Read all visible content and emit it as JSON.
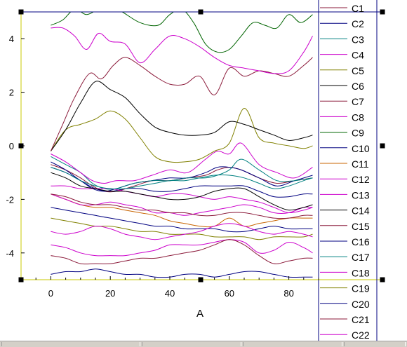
{
  "chart_data": {
    "type": "line",
    "xlabel": "A",
    "ylabel": "",
    "xlim": [
      -10,
      90
    ],
    "ylim": [
      -5,
      5
    ],
    "xticks": [
      0,
      20,
      40,
      60,
      80
    ],
    "yticks": [
      4,
      2,
      0,
      -2,
      -4
    ],
    "legend_position": "right",
    "series": [
      {
        "name": "C1",
        "color": "#8b1a3a",
        "x": [
          0,
          5,
          10,
          14,
          18,
          22,
          28,
          34,
          40,
          46,
          52,
          56,
          60,
          64,
          70,
          76,
          82,
          88
        ],
        "y": [
          -0.7,
          -0.9,
          -1.2,
          -1.5,
          -1.7,
          -1.7,
          -1.5,
          -1.3,
          -1.3,
          -1.2,
          -1.1,
          -0.9,
          -0.8,
          -0.9,
          -1.2,
          -1.4,
          -1.3,
          -1.2
        ]
      },
      {
        "name": "C2",
        "color": "#000080",
        "x": [
          0,
          5,
          10,
          14,
          18,
          22,
          28,
          34,
          40,
          46,
          52,
          56,
          60,
          64,
          70,
          76,
          82,
          88
        ],
        "y": [
          -0.8,
          -1.0,
          -1.3,
          -1.6,
          -1.7,
          -1.6,
          -1.4,
          -1.3,
          -1.2,
          -1.2,
          -1.0,
          -0.8,
          -0.8,
          -0.9,
          -1.2,
          -1.5,
          -1.3,
          -1.1
        ]
      },
      {
        "name": "C3",
        "color": "#008080",
        "x": [
          0,
          5,
          10,
          14,
          18,
          22,
          28,
          34,
          40,
          46,
          52,
          56,
          60,
          64,
          70,
          76,
          82,
          88
        ],
        "y": [
          -0.4,
          -0.7,
          -1.0,
          -1.4,
          -1.6,
          -1.6,
          -1.4,
          -1.3,
          -1.3,
          -1.2,
          -1.2,
          -1.1,
          -0.9,
          -0.5,
          -0.9,
          -1.3,
          -1.3,
          -1.2
        ]
      },
      {
        "name": "C4",
        "color": "#cc00cc",
        "x": [
          0,
          5,
          10,
          14,
          18,
          22,
          28,
          34,
          40,
          46,
          52,
          56,
          60,
          64,
          70,
          76,
          82,
          88
        ],
        "y": [
          -0.3,
          -0.6,
          -1.0,
          -1.3,
          -1.4,
          -1.3,
          -1.3,
          -1.1,
          -0.9,
          -1.0,
          -0.5,
          -0.2,
          -0.3,
          0.1,
          -0.7,
          -1.0,
          -1.2,
          -0.8
        ]
      },
      {
        "name": "C5",
        "color": "#808000",
        "x": [
          0,
          5,
          10,
          15,
          20,
          25,
          30,
          35,
          40,
          45,
          50,
          55,
          60,
          65,
          70,
          75,
          80,
          85,
          88
        ],
        "y": [
          -0.2,
          0.6,
          0.8,
          1.0,
          1.3,
          1.0,
          0.3,
          -0.4,
          -0.6,
          -0.6,
          -0.5,
          -0.2,
          0.1,
          1.4,
          0.3,
          0.1,
          0.0,
          -0.1,
          0.0
        ]
      },
      {
        "name": "C6",
        "color": "#000000",
        "x": [
          0,
          5,
          10,
          15,
          20,
          25,
          30,
          35,
          40,
          45,
          50,
          55,
          60,
          65,
          70,
          75,
          80,
          85,
          88
        ],
        "y": [
          -0.2,
          0.6,
          1.6,
          2.4,
          2.1,
          1.8,
          1.2,
          0.7,
          0.5,
          0.4,
          0.4,
          0.5,
          0.9,
          0.8,
          0.6,
          0.4,
          0.2,
          0.3,
          0.4
        ]
      },
      {
        "name": "C7",
        "color": "#8b1a3a",
        "x": [
          0,
          4,
          8,
          13,
          17,
          21,
          25,
          30,
          35,
          40,
          45,
          50,
          55,
          60,
          65,
          70,
          75,
          80,
          85,
          88
        ],
        "y": [
          -0.2,
          0.8,
          1.8,
          2.7,
          2.5,
          3.0,
          3.3,
          3.0,
          2.6,
          2.3,
          2.3,
          2.6,
          1.9,
          2.9,
          2.6,
          2.8,
          2.7,
          2.6,
          3.0,
          3.3
        ]
      },
      {
        "name": "C8",
        "color": "#cc00cc",
        "x": [
          0,
          4,
          8,
          12,
          16,
          20,
          25,
          30,
          35,
          40,
          45,
          50,
          55,
          60,
          65,
          70,
          75,
          80,
          85,
          88
        ],
        "y": [
          4.4,
          4.4,
          4.1,
          3.6,
          4.2,
          3.9,
          3.8,
          3.1,
          3.6,
          4.1,
          4.0,
          3.7,
          3.3,
          3.0,
          2.9,
          2.8,
          2.7,
          2.8,
          3.5,
          4.1
        ]
      },
      {
        "name": "C9",
        "color": "#006400",
        "x": [
          0,
          4,
          8,
          12,
          16,
          20,
          24,
          30,
          36,
          40,
          44,
          48,
          52,
          56,
          60,
          64,
          68,
          72,
          76,
          80,
          84,
          88
        ],
        "y": [
          4.5,
          4.7,
          5.1,
          4.9,
          5.1,
          5.2,
          5.0,
          4.6,
          4.5,
          4.9,
          5.1,
          4.6,
          3.8,
          3.5,
          3.6,
          4.1,
          4.6,
          4.5,
          4.4,
          4.9,
          4.6,
          4.9
        ]
      },
      {
        "name": "C10",
        "color": "#000080",
        "x": [
          0,
          5,
          10,
          15,
          20,
          25,
          30,
          35,
          40,
          45,
          50,
          55,
          60,
          65,
          70,
          75,
          80,
          85,
          88
        ],
        "y": [
          -0.6,
          -0.9,
          -1.3,
          -1.6,
          -1.7,
          -1.6,
          -1.6,
          -1.7,
          -1.7,
          -1.6,
          -1.5,
          -1.5,
          -1.5,
          -1.5,
          -1.7,
          -1.9,
          -1.9,
          -1.8,
          -1.8
        ]
      },
      {
        "name": "C11",
        "color": "#c86400",
        "x": [
          0,
          5,
          10,
          15,
          20,
          25,
          30,
          35,
          40,
          45,
          50,
          55,
          60,
          65,
          70,
          75,
          80,
          85,
          88
        ],
        "y": [
          -1.8,
          -2.0,
          -2.2,
          -2.3,
          -2.3,
          -2.4,
          -2.5,
          -2.6,
          -2.8,
          -2.9,
          -3.0,
          -3.0,
          -2.7,
          -3.0,
          -2.9,
          -2.8,
          -2.7,
          -2.7,
          -2.7
        ]
      },
      {
        "name": "C12",
        "color": "#cc00cc",
        "x": [
          0,
          5,
          10,
          15,
          20,
          25,
          30,
          35,
          40,
          45,
          50,
          55,
          60,
          65,
          70,
          75,
          80,
          85,
          88
        ],
        "y": [
          -1.5,
          -1.5,
          -1.6,
          -1.6,
          -1.6,
          -1.7,
          -1.8,
          -1.9,
          -1.8,
          -1.8,
          -1.9,
          -2.0,
          -1.9,
          -2.0,
          -2.1,
          -2.3,
          -2.5,
          -2.4,
          -2.3
        ]
      },
      {
        "name": "C13",
        "color": "#cc00cc",
        "x": [
          0,
          5,
          10,
          15,
          20,
          25,
          30,
          35,
          40,
          45,
          50,
          55,
          60,
          65,
          70,
          75,
          80,
          85,
          88
        ],
        "y": [
          -1.8,
          -2.0,
          -2.2,
          -2.2,
          -2.1,
          -2.2,
          -2.3,
          -2.5,
          -2.5,
          -2.6,
          -2.5,
          -2.4,
          -2.3,
          -2.2,
          -2.3,
          -2.5,
          -2.5,
          -2.3,
          -2.3
        ]
      },
      {
        "name": "C14",
        "color": "#000000",
        "x": [
          0,
          5,
          10,
          15,
          20,
          25,
          30,
          35,
          40,
          45,
          50,
          55,
          60,
          65,
          70,
          75,
          80,
          85,
          88
        ],
        "y": [
          -1.0,
          -1.2,
          -1.5,
          -1.6,
          -1.7,
          -1.7,
          -1.8,
          -1.9,
          -2.0,
          -2.0,
          -1.9,
          -1.7,
          -1.6,
          -1.6,
          -1.9,
          -2.2,
          -2.4,
          -2.3,
          -2.2
        ]
      },
      {
        "name": "C15",
        "color": "#8b1a3a",
        "x": [
          0,
          5,
          10,
          15,
          20,
          25,
          30,
          35,
          40,
          45,
          50,
          55,
          60,
          65,
          70,
          75,
          80,
          85,
          88
        ],
        "y": [
          -1.8,
          -1.9,
          -2.1,
          -2.2,
          -2.2,
          -2.3,
          -2.4,
          -2.4,
          -2.5,
          -2.5,
          -2.6,
          -2.6,
          -2.5,
          -2.5,
          -2.6,
          -2.7,
          -2.7,
          -2.6,
          -2.6
        ]
      },
      {
        "name": "C16",
        "color": "#000080",
        "x": [
          0,
          5,
          10,
          15,
          20,
          25,
          30,
          35,
          40,
          45,
          50,
          55,
          60,
          65,
          70,
          75,
          80,
          85,
          88
        ],
        "y": [
          -2.3,
          -2.4,
          -2.5,
          -2.6,
          -2.7,
          -2.8,
          -2.9,
          -3.0,
          -3.0,
          -3.1,
          -3.1,
          -3.1,
          -3.2,
          -3.2,
          -3.1,
          -3.0,
          -3.1,
          -3.1,
          -3.1
        ]
      },
      {
        "name": "C17",
        "color": "#008080",
        "x": [
          0,
          5,
          10,
          15,
          20,
          25,
          30,
          35,
          40,
          45,
          50,
          55,
          60,
          65,
          70,
          75,
          80,
          85,
          88
        ],
        "y": [
          -0.8,
          -1.0,
          -1.3,
          -1.5,
          -1.6,
          -1.6,
          -1.5,
          -1.4,
          -1.3,
          -1.3,
          -1.2,
          -1.1,
          -1.1,
          -1.2,
          -1.4,
          -1.6,
          -1.5,
          -1.3,
          -1.2
        ]
      },
      {
        "name": "C18",
        "color": "#cc00cc",
        "x": [
          0,
          5,
          10,
          15,
          20,
          25,
          30,
          35,
          40,
          45,
          50,
          55,
          60,
          65,
          70,
          75,
          80,
          85,
          88
        ],
        "y": [
          -3.7,
          -3.8,
          -4.0,
          -4.1,
          -4.1,
          -4.1,
          -4.0,
          -3.9,
          -3.7,
          -3.7,
          -3.7,
          -3.6,
          -3.5,
          -3.6,
          -4.0,
          -3.9,
          -3.6,
          -3.8,
          -4.0
        ]
      },
      {
        "name": "C19",
        "color": "#808000",
        "x": [
          0,
          5,
          10,
          15,
          20,
          25,
          30,
          35,
          40,
          45,
          50,
          55,
          60,
          65,
          70,
          75,
          80,
          85,
          88
        ],
        "y": [
          -2.7,
          -2.8,
          -2.9,
          -3.0,
          -3.0,
          -3.1,
          -3.2,
          -3.2,
          -3.3,
          -3.3,
          -3.3,
          -3.4,
          -3.4,
          -3.4,
          -3.5,
          -3.4,
          -3.4,
          -3.4,
          -3.3
        ]
      },
      {
        "name": "C20",
        "color": "#000080",
        "x": [
          0,
          5,
          10,
          15,
          20,
          25,
          30,
          35,
          40,
          45,
          50,
          55,
          60,
          65,
          70,
          75,
          80,
          85,
          88
        ],
        "y": [
          -4.8,
          -4.7,
          -4.7,
          -4.6,
          -4.7,
          -4.8,
          -4.8,
          -4.9,
          -4.9,
          -4.8,
          -4.8,
          -4.9,
          -4.8,
          -4.7,
          -4.7,
          -4.8,
          -4.9,
          -4.9,
          -4.9
        ]
      },
      {
        "name": "C21",
        "color": "#8b1a3a",
        "x": [
          0,
          5,
          10,
          15,
          20,
          25,
          30,
          35,
          40,
          45,
          50,
          55,
          60,
          65,
          70,
          75,
          80,
          85,
          88
        ],
        "y": [
          -4.1,
          -4.2,
          -4.4,
          -4.4,
          -4.4,
          -4.3,
          -4.2,
          -4.2,
          -4.1,
          -4.0,
          -3.9,
          -3.7,
          -3.5,
          -3.7,
          -4.1,
          -4.4,
          -4.3,
          -4.2,
          -4.2
        ]
      },
      {
        "name": "C22",
        "color": "#cc00cc",
        "x": [
          0,
          5,
          10,
          15,
          20,
          25,
          30,
          35,
          40,
          45,
          50,
          55,
          60,
          65,
          70,
          75,
          80,
          85,
          88
        ],
        "y": [
          -3.2,
          -3.3,
          -3.2,
          -3.0,
          -3.1,
          -3.3,
          -3.4,
          -3.5,
          -3.4,
          -3.3,
          -3.2,
          -3.0,
          -2.9,
          -3.0,
          -3.2,
          -3.3,
          -3.2,
          -3.3,
          -3.4
        ]
      }
    ]
  }
}
